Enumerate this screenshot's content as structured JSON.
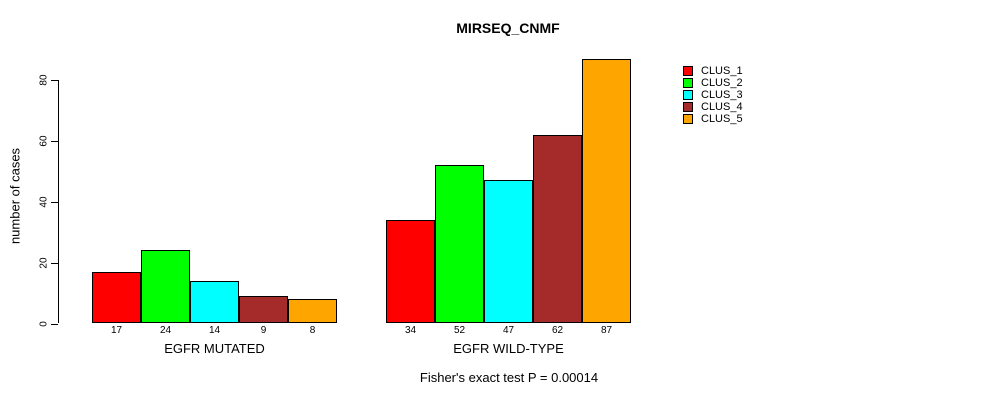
{
  "title": "MIRSEQ_CNMF",
  "chart_data": {
    "type": "bar",
    "title": "MIRSEQ_CNMF",
    "xlabel": "",
    "ylabel": "number of cases",
    "y_ticks": [
      0,
      20,
      40,
      60,
      80
    ],
    "ylim": [
      0,
      87
    ],
    "grid": false,
    "legend_position": "right",
    "annotation": "Fisher's exact test P = 0.00014",
    "series": [
      {
        "name": "CLUS_1",
        "color": "#ff0000",
        "values": [
          17,
          34
        ]
      },
      {
        "name": "CLUS_2",
        "color": "#00ff00",
        "values": [
          24,
          52
        ]
      },
      {
        "name": "CLUS_3",
        "color": "#00ffff",
        "values": [
          14,
          47
        ]
      },
      {
        "name": "CLUS_4",
        "color": "#a52a2a",
        "values": [
          9,
          62
        ]
      },
      {
        "name": "CLUS_5",
        "color": "#ffa500",
        "values": [
          8,
          87
        ]
      }
    ],
    "categories": [
      "EGFR MUTATED",
      "EGFR WILD-TYPE"
    ],
    "bar_value_labels": [
      [
        17,
        24,
        14,
        9,
        8
      ],
      [
        34,
        52,
        47,
        62,
        87
      ]
    ],
    "bar_border_color": "#000000",
    "axis_color": "#000000",
    "text_color": "#000000",
    "background_color": "#ffffff"
  },
  "legend": {
    "items": [
      {
        "label": "CLUS_1",
        "color": "#ff0000"
      },
      {
        "label": "CLUS_2",
        "color": "#00ff00"
      },
      {
        "label": "CLUS_3",
        "color": "#00ffff"
      },
      {
        "label": "CLUS_4",
        "color": "#a52a2a"
      },
      {
        "label": "CLUS_5",
        "color": "#ffa500"
      }
    ]
  }
}
